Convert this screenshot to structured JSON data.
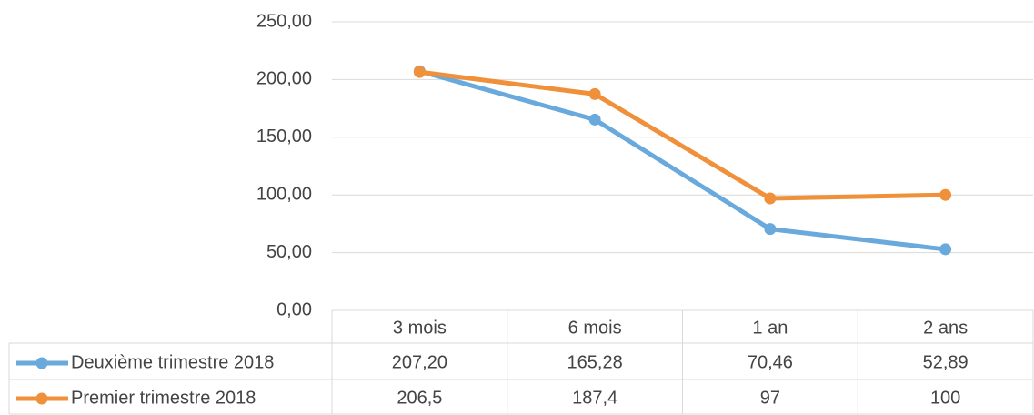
{
  "chart_data": {
    "type": "line",
    "categories": [
      "3 mois",
      "6 mois",
      "1 an",
      "2 ans"
    ],
    "series": [
      {
        "name": "Deuxième trimestre 2018",
        "color": "#6aa9dc",
        "values": [
          207.2,
          165.28,
          70.46,
          52.89
        ],
        "value_labels": [
          "207,20",
          "165,28",
          "70,46",
          "52,89"
        ]
      },
      {
        "name": "Premier trimestre 2018",
        "color": "#f0903a",
        "values": [
          206.5,
          187.4,
          97,
          100
        ],
        "value_labels": [
          "206,5",
          "187,4",
          "97",
          "100"
        ]
      }
    ],
    "ylim": [
      0,
      250
    ],
    "yticks": [
      {
        "value": 0,
        "label": "0,00"
      },
      {
        "value": 50,
        "label": "50,00"
      },
      {
        "value": 100,
        "label": "100,00"
      },
      {
        "value": 150,
        "label": "150,00"
      },
      {
        "value": 200,
        "label": "200,00"
      },
      {
        "value": 250,
        "label": "250,00"
      }
    ],
    "grid": true
  }
}
